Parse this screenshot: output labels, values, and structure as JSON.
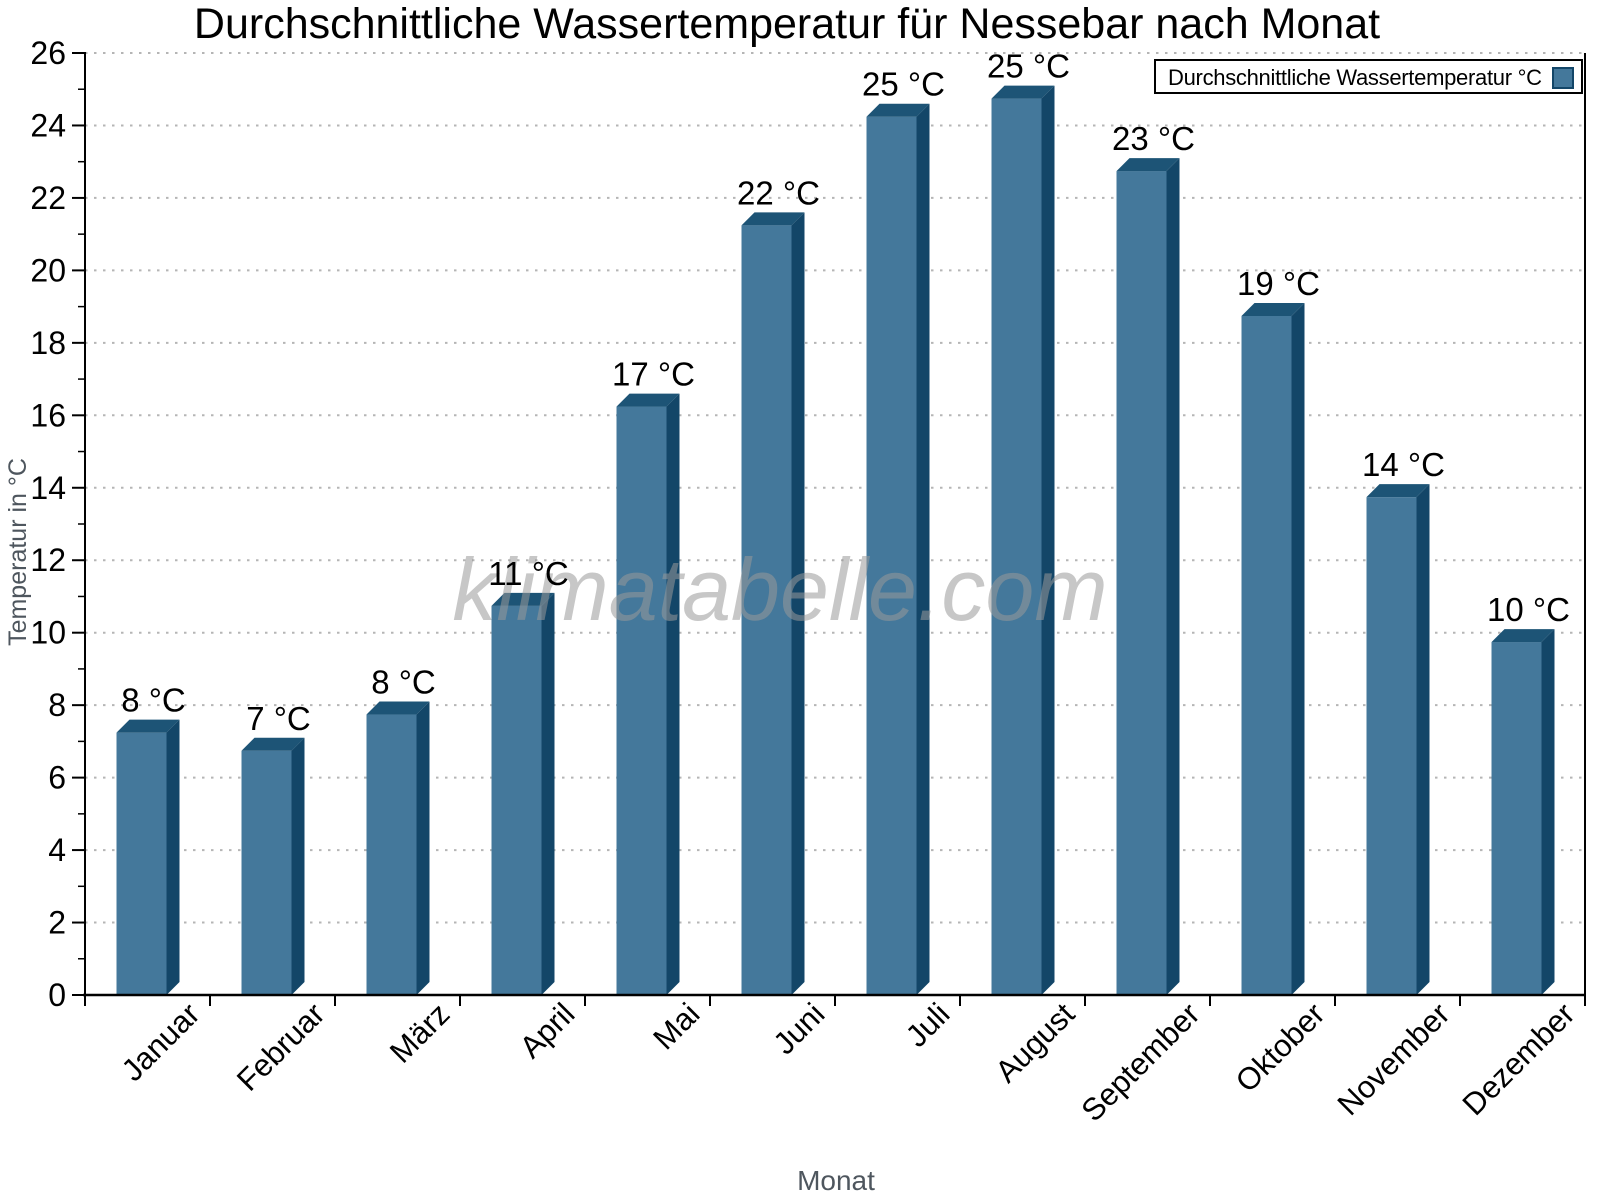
{
  "chart_data": {
    "type": "bar",
    "title": "Durchschnittliche Wassertemperatur für Nessebar nach Monat",
    "xlabel": "Monat",
    "ylabel": "Temperatur in °C",
    "watermark": "klimatabelle.com",
    "categories": [
      "Januar",
      "Februar",
      "März",
      "April",
      "Mai",
      "Juni",
      "Juli",
      "August",
      "September",
      "Oktober",
      "November",
      "Dezember"
    ],
    "series": [
      {
        "name": "Durchschnittliche Wassertemperatur °C",
        "values": [
          7.6,
          7.1,
          8.1,
          11.1,
          16.6,
          21.6,
          24.6,
          25.1,
          23.1,
          19.1,
          14.1,
          10.1
        ],
        "value_labels": [
          "8 °C",
          "7 °C",
          "8 °C",
          "11 °C",
          "17 °C",
          "22 °C",
          "25 °C",
          "25 °C",
          "23 °C",
          "19 °C",
          "14 °C",
          "10 °C"
        ]
      }
    ],
    "ylim": [
      0,
      26
    ],
    "ytick_step": 2,
    "y_minor_step": 1,
    "grid": {
      "horizontal": true,
      "style": "dotted",
      "color": "#b5b5b5"
    },
    "legend": {
      "position": "top-right"
    },
    "colors": {
      "bar_front": "#44789B",
      "bar_top": "#1D5476",
      "bar_side": "#134668",
      "axis": "#000000",
      "muted_label": "#4e565e"
    }
  }
}
